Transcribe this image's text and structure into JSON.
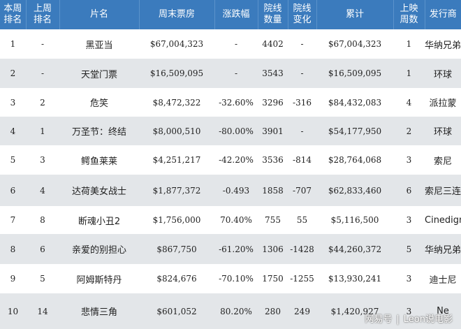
{
  "headers": [
    "本周\n排名",
    "上周\n排名",
    "片名",
    "周末票房",
    "涨跌幅",
    "院线\n数量",
    "院线\n变化",
    "累计",
    "上映\n周数",
    "发行商"
  ],
  "rows": [
    {
      "rank": "1",
      "last": "-",
      "title": "黑亚当",
      "weekend": "$67,004,323",
      "change": "-",
      "theaters": "4402",
      "theater_change": "-",
      "total": "$67,004,323",
      "weeks": "1",
      "distributor": "华纳兄弟"
    },
    {
      "rank": "2",
      "last": "-",
      "title": "天堂门票",
      "weekend": "$16,509,095",
      "change": "-",
      "theaters": "3543",
      "theater_change": "-",
      "total": "$16,509,095",
      "weeks": "1",
      "distributor": "环球"
    },
    {
      "rank": "3",
      "last": "2",
      "title": "危笑",
      "weekend": "$8,472,322",
      "change": "-32.60%",
      "theaters": "3296",
      "theater_change": "-316",
      "total": "$84,432,083",
      "weeks": "4",
      "distributor": "派拉蒙"
    },
    {
      "rank": "4",
      "last": "1",
      "title": "万圣节：终结",
      "weekend": "$8,000,510",
      "change": "-80.00%",
      "theaters": "3901",
      "theater_change": "-",
      "total": "$54,177,950",
      "weeks": "2",
      "distributor": "环球"
    },
    {
      "rank": "5",
      "last": "3",
      "title": "鳄鱼莱莱",
      "weekend": "$4,251,217",
      "change": "-42.20%",
      "theaters": "3536",
      "theater_change": "-814",
      "total": "$28,764,068",
      "weeks": "3",
      "distributor": "索尼"
    },
    {
      "rank": "6",
      "last": "4",
      "title": "达荷美女战士",
      "weekend": "$1,877,372",
      "change": "-0.493",
      "theaters": "1858",
      "theater_change": "-707",
      "total": "$62,833,460",
      "weeks": "6",
      "distributor": "索尼三连星"
    },
    {
      "rank": "7",
      "last": "8",
      "title": "断魂小丑2",
      "weekend": "$1,756,000",
      "change": "70.40%",
      "theaters": "755",
      "theater_change": "55",
      "total": "$5,116,500",
      "weeks": "3",
      "distributor": "Cinedigm"
    },
    {
      "rank": "8",
      "last": "6",
      "title": "亲爱的别担心",
      "weekend": "$867,750",
      "change": "-61.20%",
      "theaters": "1306",
      "theater_change": "-1428",
      "total": "$44,260,372",
      "weeks": "5",
      "distributor": "华纳兄弟"
    },
    {
      "rank": "9",
      "last": "5",
      "title": "阿姆斯特丹",
      "weekend": "$824,676",
      "change": "-70.10%",
      "theaters": "1750",
      "theater_change": "-1255",
      "total": "$13,930,241",
      "weeks": "3",
      "distributor": "迪士尼"
    },
    {
      "rank": "10",
      "last": "14",
      "title": "悲情三角",
      "weekend": "$601,052",
      "change": "80.20%",
      "theaters": "280",
      "theater_change": "249",
      "total": "$1,420,927",
      "weeks": "3",
      "distributor": "Ne"
    }
  ],
  "watermark": {
    "brand": "网易号",
    "account": "Leon说电影"
  }
}
